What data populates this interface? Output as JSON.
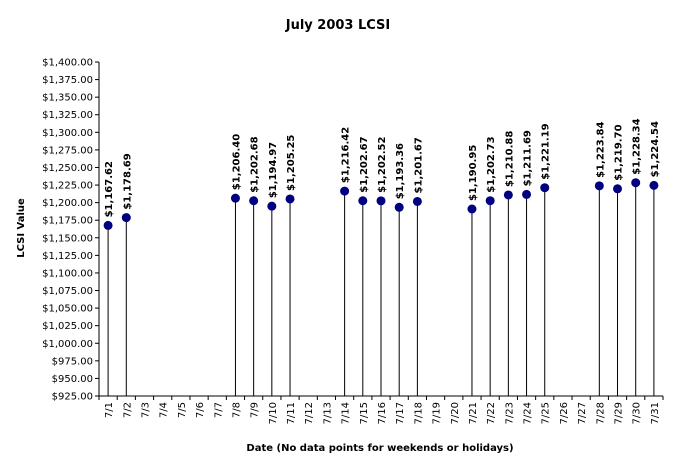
{
  "chart_data": {
    "type": "scatter",
    "title": "July 2003 LCSI",
    "xlabel": "Date (No data points for weekends or holidays)",
    "ylabel": "LCSI Value",
    "ylim": [
      925,
      1400
    ],
    "ytick_step": 25,
    "yticks": [
      "$925.00",
      "$950.00",
      "$975.00",
      "$1,000.00",
      "$1,025.00",
      "$1,050.00",
      "$1,075.00",
      "$1,100.00",
      "$1,125.00",
      "$1,150.00",
      "$1,175.00",
      "$1,200.00",
      "$1,225.00",
      "$1,250.00",
      "$1,275.00",
      "$1,300.00",
      "$1,325.00",
      "$1,350.00",
      "$1,375.00",
      "$1,400.00"
    ],
    "categories": [
      "7/1",
      "7/2",
      "7/3",
      "7/4",
      "7/5",
      "7/6",
      "7/7",
      "7/8",
      "7/9",
      "7/10",
      "7/11",
      "7/12",
      "7/13",
      "7/14",
      "7/15",
      "7/16",
      "7/17",
      "7/18",
      "7/19",
      "7/20",
      "7/21",
      "7/22",
      "7/23",
      "7/24",
      "7/25",
      "7/26",
      "7/27",
      "7/28",
      "7/29",
      "7/30",
      "7/31"
    ],
    "values": [
      1167.62,
      1178.69,
      null,
      null,
      null,
      null,
      null,
      1206.4,
      1202.68,
      1194.97,
      1205.25,
      null,
      null,
      1216.42,
      1202.67,
      1202.52,
      1193.36,
      1201.67,
      null,
      null,
      1190.95,
      1202.73,
      1210.88,
      1211.69,
      1221.19,
      null,
      null,
      1223.84,
      1219.7,
      1228.34,
      1224.54
    ],
    "labels": [
      "$1,167.62",
      "$1,178.69",
      null,
      null,
      null,
      null,
      null,
      "$1,206.40",
      "$1,202.68",
      "$1,194.97",
      "$1,205.25",
      null,
      null,
      "$1,216.42",
      "$1,202.67",
      "$1,202.52",
      "$1,193.36",
      "$1,201.67",
      null,
      null,
      "$1,190.95",
      "$1,202.73",
      "$1,210.88",
      "$1,211.69",
      "$1,221.19",
      null,
      null,
      "$1,223.84",
      "$1,219.70",
      "$1,228.34",
      "$1,224.54"
    ],
    "marker_color": "#000080",
    "stem_color": "#000000",
    "grid": false,
    "legend": "none"
  }
}
